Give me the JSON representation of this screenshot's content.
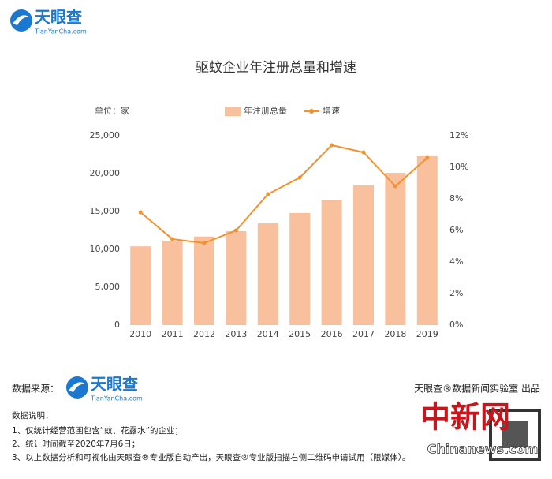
{
  "header": {
    "brand": "天眼查",
    "domain": "TianYanCha.com"
  },
  "chart_data": {
    "type": "bar",
    "title": "驱蚊企业年注册总量和增速",
    "unit_label": "单位：家",
    "categories": [
      "2010",
      "2011",
      "2012",
      "2013",
      "2014",
      "2015",
      "2016",
      "2017",
      "2018",
      "2019"
    ],
    "series": [
      {
        "name": "年注册总量",
        "type": "bar",
        "color": "#f9c09e",
        "values": [
          10400,
          11050,
          11700,
          12400,
          13450,
          14800,
          16550,
          18450,
          20100,
          22300
        ]
      },
      {
        "name": "增速",
        "type": "line",
        "axis": "y2",
        "color": "#f0922e",
        "values": [
          7.15,
          5.45,
          5.2,
          6.0,
          8.3,
          9.35,
          11.4,
          10.95,
          8.8,
          10.6
        ]
      }
    ],
    "ylim": [
      0,
      25000
    ],
    "yticks": [
      0,
      {
        "value": 5000,
        "label": "5,000"
      },
      {
        "value": 10000,
        "label": "10,000"
      },
      {
        "value": 15000,
        "label": "15,000"
      },
      {
        "value": 20000,
        "label": "20,000"
      },
      {
        "value": 25000,
        "label": "25,000"
      }
    ],
    "y2lim": [
      0,
      12
    ],
    "y2ticks": [
      {
        "value": 0,
        "label": "0%"
      },
      {
        "value": 2,
        "label": "2%"
      },
      {
        "value": 4,
        "label": "4%"
      },
      {
        "value": 6,
        "label": "6%"
      },
      {
        "value": 8,
        "label": "8%"
      },
      {
        "value": 10,
        "label": "10%"
      },
      {
        "value": 12,
        "label": "12%"
      }
    ],
    "grid": false,
    "legend": "top"
  },
  "footer": {
    "source_label": "数据来源：",
    "brand": "天眼查",
    "domain": "TianYanCha.com",
    "credit": "天眼查®数据新闻实验室 出品",
    "notes_title": "数据说明：",
    "notes": [
      "1、仅统计经营范围包含“蚊、花露水”的企业；",
      "2、统计时间截至2020年7月6日；",
      "3、以上数据分析和可视化由天眼查®专业版自动产出，天眼查®专业版扫描右侧二维码申请试用（限媒体）。"
    ],
    "stamp": "中新网",
    "stamp_site": "Chinanews.com"
  }
}
